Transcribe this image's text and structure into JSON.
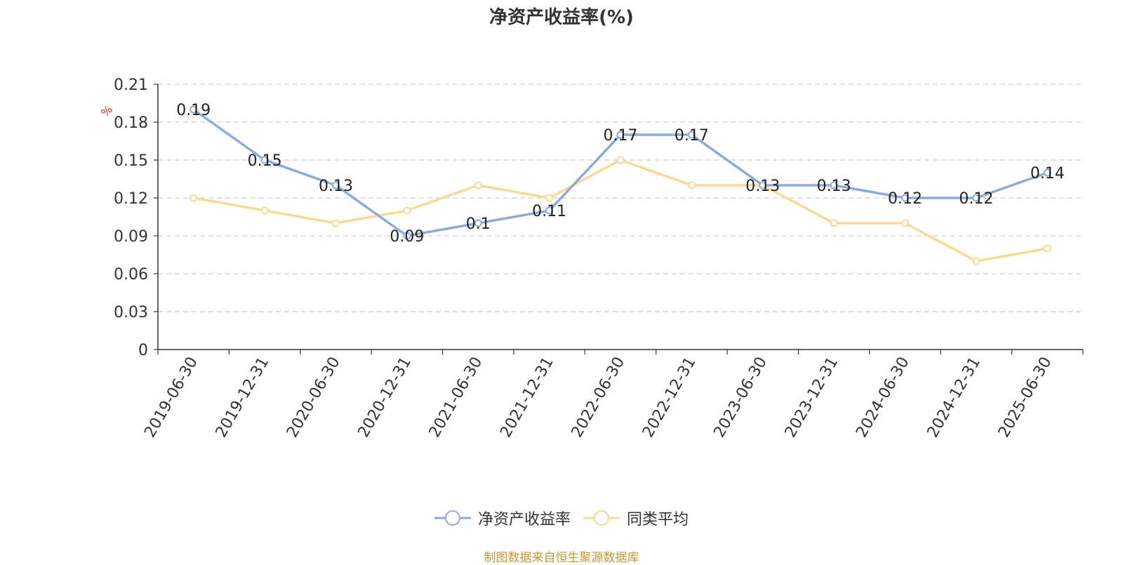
{
  "chart_data": {
    "type": "line",
    "title": "净资产收益率(%)",
    "ylabel": "%",
    "xlabel": "",
    "categories": [
      "2019-06-30",
      "2019-12-31",
      "2020-06-30",
      "2020-12-31",
      "2021-06-30",
      "2021-12-31",
      "2022-06-30",
      "2022-12-31",
      "2023-06-30",
      "2023-12-31",
      "2024-06-30",
      "2024-12-31",
      "2025-06-30"
    ],
    "series": [
      {
        "name": "净资产收益率",
        "color": "#8eaad8",
        "labels": [
          "0.19",
          "0.15",
          "0.13",
          "0.09",
          "0.1",
          "0.11",
          "0.17",
          "0.17",
          "0.13",
          "0.13",
          "0.12",
          "0.12",
          "0.14"
        ],
        "values": [
          0.19,
          0.15,
          0.13,
          0.09,
          0.1,
          0.11,
          0.17,
          0.17,
          0.13,
          0.13,
          0.12,
          0.12,
          0.14
        ]
      },
      {
        "name": "同类平均",
        "color": "#fad995",
        "values": [
          0.12,
          0.11,
          0.1,
          0.11,
          0.13,
          0.12,
          0.15,
          0.13,
          0.13,
          0.1,
          0.1,
          0.07,
          0.08
        ]
      }
    ],
    "ylim": [
      0,
      0.21
    ],
    "yticks": [
      "0",
      "0.03",
      "0.06",
      "0.09",
      "0.12",
      "0.15",
      "0.18",
      "0.21"
    ],
    "grid": true,
    "legend_position": "bottom"
  },
  "source_note": "制图数据来自恒生聚源数据库"
}
